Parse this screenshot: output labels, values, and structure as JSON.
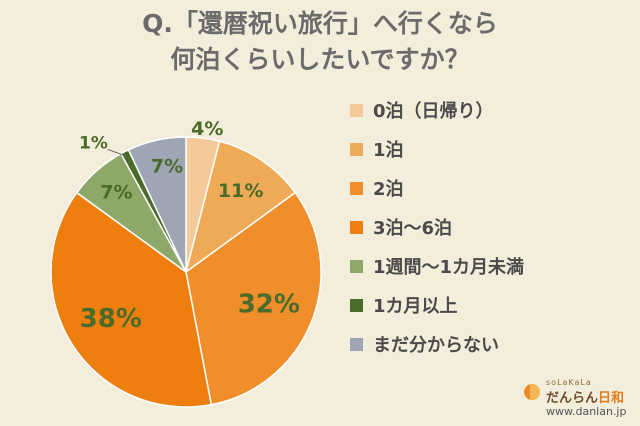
{
  "title": {
    "line1": "Q.「還暦祝い旅行」へ行くなら",
    "line2": "何泊くらいしたいですか？"
  },
  "chart_data": {
    "type": "pie",
    "categories": [
      "0泊（日帰り）",
      "1泊",
      "2泊",
      "3泊～6泊",
      "1週間～1カ月未満",
      "1カ月以上",
      "まだ分からない"
    ],
    "values": [
      4,
      11,
      32,
      38,
      7,
      1,
      7
    ],
    "labels": [
      "4%",
      "11%",
      "32%",
      "38%",
      "7%",
      "1%",
      "7%"
    ],
    "colors": [
      "#f6c99a",
      "#efaa57",
      "#ef8e2a",
      "#ee7f0f",
      "#8ea86a",
      "#4a6b2a",
      "#9ea6b3"
    ],
    "label_colors": [
      "#4a6b2a",
      "#4a6b2a",
      "#4a6b2a",
      "#4a6b2a",
      "#4a6b2a",
      "#4a6b2a",
      "#4a6b2a"
    ],
    "legend_position": "right"
  },
  "brand": {
    "tagline": "soLaKaLa",
    "name_part1": "だんらん",
    "name_part2": "日和",
    "url": "www.danlan.jp"
  }
}
